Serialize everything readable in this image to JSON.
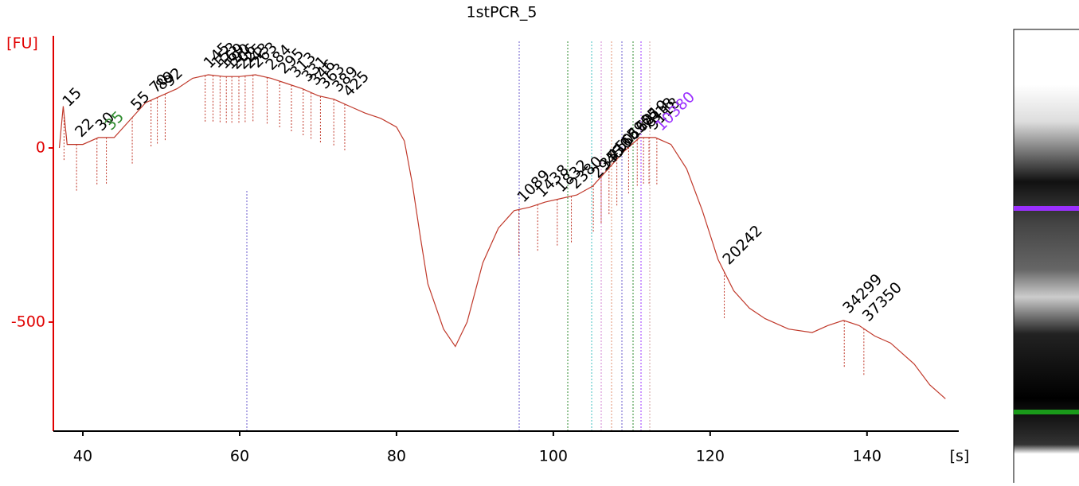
{
  "chart_data": {
    "type": "line",
    "title": "1stPCR_5",
    "y_label": "[FU]",
    "x_label": "[s]",
    "xlim": [
      36.24,
      151.7
    ],
    "xticks": [
      40,
      60,
      80,
      100,
      120,
      140
    ],
    "ylim": [
      -813,
      322
    ],
    "yticks": [
      0,
      -500
    ],
    "color": "#c0392b",
    "x": [
      37,
      37.5,
      38,
      40,
      42,
      44,
      46,
      48,
      50,
      52,
      54,
      56,
      58,
      60,
      62,
      64,
      66,
      68,
      70,
      72,
      74,
      76,
      78,
      80,
      81,
      82,
      83,
      84,
      86,
      87.5,
      89,
      91,
      93,
      95,
      97,
      99,
      101,
      103,
      105,
      107,
      109,
      111,
      113,
      115,
      117,
      119,
      121,
      123,
      125,
      127,
      130,
      133,
      135,
      137,
      139,
      141,
      143,
      146,
      148,
      150
    ],
    "y": [
      0,
      120,
      10,
      10,
      30,
      30,
      80,
      130,
      150,
      170,
      200,
      210,
      205,
      205,
      210,
      200,
      185,
      170,
      150,
      140,
      120,
      100,
      85,
      60,
      20,
      -100,
      -250,
      -390,
      -520,
      -570,
      -500,
      -330,
      -230,
      -180,
      -170,
      -155,
      -145,
      -135,
      -110,
      -60,
      -10,
      30,
      30,
      10,
      -60,
      -180,
      -320,
      -410,
      -460,
      -490,
      -520,
      -530,
      -510,
      -495,
      -510,
      -540,
      -560,
      -620,
      -680,
      -720
    ],
    "peaks": [
      {
        "label": "15",
        "x": 37.6
      },
      {
        "label": "22",
        "x": 39.2
      },
      {
        "label": "30",
        "x": 41.8
      },
      {
        "label": "35",
        "x": 43,
        "color": "#2e8b2e"
      },
      {
        "label": "55",
        "x": 46.3
      },
      {
        "label": "70",
        "x": 48.7
      },
      {
        "label": "89",
        "x": 49.5
      },
      {
        "label": "92",
        "x": 50.5
      },
      {
        "label": "145",
        "x": 55.6
      },
      {
        "label": "153",
        "x": 56.6
      },
      {
        "label": "169",
        "x": 57.5
      },
      {
        "label": "190",
        "x": 58.3
      },
      {
        "label": "206",
        "x": 59
      },
      {
        "label": "225",
        "x": 59.9
      },
      {
        "label": "243",
        "x": 60.7
      },
      {
        "label": "263",
        "x": 61.7
      },
      {
        "label": "284",
        "x": 63.5
      },
      {
        "label": "295",
        "x": 65.1
      },
      {
        "label": "313",
        "x": 66.6
      },
      {
        "label": "331",
        "x": 68.1
      },
      {
        "label": "346",
        "x": 69.1
      },
      {
        "label": "363",
        "x": 70.3
      },
      {
        "label": "389",
        "x": 72
      },
      {
        "label": "425",
        "x": 73.4
      },
      {
        "label": "1089",
        "x": 95.6
      },
      {
        "label": "1438",
        "x": 98
      },
      {
        "label": "1832",
        "x": 100.5
      },
      {
        "label": "2380",
        "x": 102.3
      },
      {
        "label": "2945",
        "x": 105.1
      },
      {
        "label": "3530",
        "x": 106.1
      },
      {
        "label": "4166",
        "x": 107.1
      },
      {
        "label": "5011",
        "x": 108.1
      },
      {
        "label": "5905",
        "x": 109.6
      },
      {
        "label": "6819",
        "x": 110.7
      },
      {
        "label": "7818",
        "x": 111.5
      },
      {
        "label": "9118",
        "x": 112.2
      },
      {
        "label": "10380",
        "x": 113.2,
        "color": "#9b30ff"
      },
      {
        "label": "20242",
        "x": 121.8
      },
      {
        "label": "34299",
        "x": 137.1
      },
      {
        "label": "37350",
        "x": 139.6
      }
    ]
  }
}
